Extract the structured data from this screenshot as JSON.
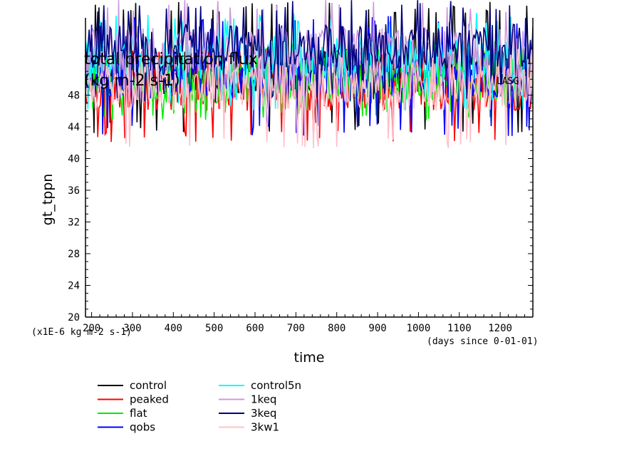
{
  "chart_data": {
    "type": "line",
    "title": "total precipitation flux",
    "subtitle": "(kg m-2 s-1)",
    "corner_tag": "LASG",
    "xlabel": "time",
    "ylabel": "gt_tppn",
    "y_unit_note": "(x1E-6 kg m-2 s-1)",
    "x_unit_note": "(days since 0-01-01)",
    "xlim": [
      185,
      1280
    ],
    "ylim": [
      20,
      60
    ],
    "x_ticks": [
      200,
      300,
      400,
      500,
      600,
      700,
      800,
      900,
      1000,
      1100,
      1200
    ],
    "y_ticks": [
      20,
      24,
      28,
      32,
      36,
      40,
      44,
      48
    ],
    "grid": false,
    "legend_position": "bottom-left",
    "series": [
      {
        "name": "control",
        "color": "#000000",
        "mean": 51.0,
        "low": 43.2,
        "high": 59.8
      },
      {
        "name": "peaked",
        "color": "#ff0000",
        "mean": 49.0,
        "low": 42.0,
        "high": 54.0
      },
      {
        "name": "flat",
        "color": "#00ee00",
        "mean": 50.0,
        "low": 44.8,
        "high": 55.0
      },
      {
        "name": "qobs",
        "color": "#0000ff",
        "mean": 50.5,
        "low": 42.8,
        "high": 58.0
      },
      {
        "name": "control5n",
        "color": "#00ffff",
        "mean": 52.5,
        "low": 46.0,
        "high": 58.5
      },
      {
        "name": "1keq",
        "color": "#cc99dd",
        "mean": 53.5,
        "low": 47.0,
        "high": 60.0
      },
      {
        "name": "3keq",
        "color": "#000080",
        "mean": 54.0,
        "low": 47.0,
        "high": 60.0
      },
      {
        "name": "3kw1",
        "color": "#ffc0cb",
        "mean": 49.0,
        "low": 41.2,
        "high": 54.0
      }
    ]
  }
}
